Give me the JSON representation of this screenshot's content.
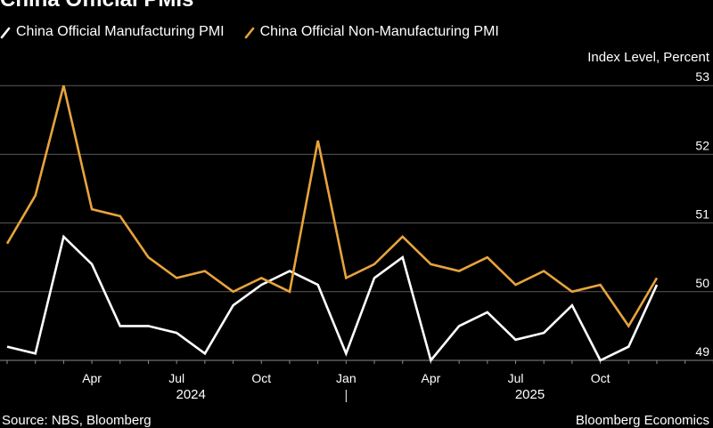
{
  "page": {
    "title": "China Official PMIs",
    "source": "Source: NBS, Bloomberg",
    "brand": "Bloomberg Economics"
  },
  "colors": {
    "background": "#000000",
    "manufacturing": "#ffffff",
    "non_manufacturing": "#e8a33c",
    "grid": "#5a5a5a",
    "axis": "#8a8a8a"
  },
  "chart_data": {
    "type": "line",
    "title": "China Official PMIs",
    "ylabel": "Index Level, Percent",
    "xlabel": "",
    "ylim": [
      48.8,
      53.2
    ],
    "yticks": [
      49,
      50,
      51,
      52,
      53
    ],
    "grid": true,
    "legend": "top-left",
    "x": [
      "2024-01",
      "2024-02",
      "2024-03",
      "2024-04",
      "2024-05",
      "2024-06",
      "2024-07",
      "2024-08",
      "2024-09",
      "2024-10",
      "2024-11",
      "2024-12",
      "2025-01",
      "2025-02",
      "2025-03",
      "2025-04",
      "2025-05",
      "2025-06",
      "2025-07",
      "2025-08",
      "2025-09",
      "2025-10",
      "2025-11",
      "2025-12",
      "2026-01",
      "2026-02"
    ],
    "xticks": [
      {
        "month": "2024-04",
        "label": "Apr"
      },
      {
        "month": "2024-07",
        "label": "Jul"
      },
      {
        "month": "2024-10",
        "label": "Oct"
      },
      {
        "month": "2025-01",
        "label": "Jan"
      },
      {
        "month": "2025-04",
        "label": "Apr"
      },
      {
        "month": "2025-07",
        "label": "Jul"
      },
      {
        "month": "2025-10",
        "label": "Oct"
      }
    ],
    "years": [
      {
        "label": "2024",
        "center": "2024-07"
      },
      {
        "label": "2025",
        "center": "2025-07"
      }
    ],
    "year_separator": "2025-01",
    "series": [
      {
        "name": "China Official Manufacturing PMI",
        "color": "#ffffff",
        "values": [
          49.2,
          49.1,
          50.8,
          50.4,
          49.5,
          49.5,
          49.4,
          49.1,
          49.8,
          50.1,
          50.3,
          50.1,
          49.1,
          50.2,
          50.5,
          49.0,
          49.5,
          49.7,
          49.3,
          49.4,
          49.8,
          49.0,
          49.2,
          50.1,
          null,
          null
        ]
      },
      {
        "name": "China Official Non-Manufacturing PMI",
        "color": "#e8a33c",
        "values": [
          50.7,
          51.4,
          53.0,
          51.2,
          51.1,
          50.5,
          50.2,
          50.3,
          50.0,
          50.2,
          50.0,
          52.2,
          50.2,
          50.4,
          50.8,
          50.4,
          50.3,
          50.5,
          50.1,
          50.3,
          50.0,
          50.1,
          49.5,
          50.2,
          null,
          null
        ]
      }
    ]
  }
}
